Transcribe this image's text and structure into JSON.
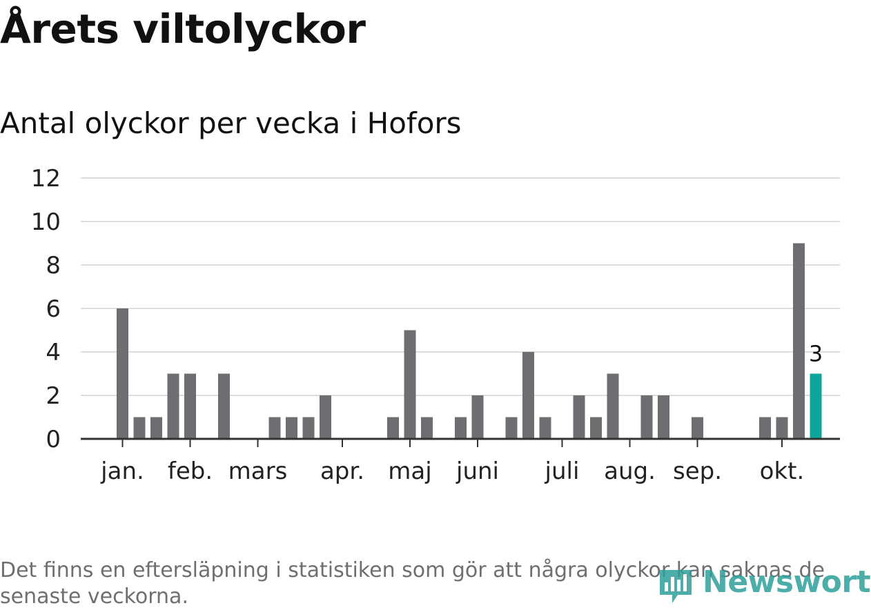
{
  "header": {
    "title": "Årets viltolyckor",
    "subtitle": "Antal olyckor per vecka i Hofors"
  },
  "footnote": "Det finns en eftersläpning i statistiken som gör att några olyckor kan saknas de senaste veckorna.",
  "logo": {
    "text": "Newsworthy",
    "icon": "newsworthy-chart-icon",
    "color": "#2e9f9a"
  },
  "chart_data": {
    "type": "bar",
    "x_unit": "week",
    "weeks": [
      1,
      2,
      3,
      4,
      5,
      6,
      7,
      8,
      9,
      10,
      11,
      12,
      13,
      14,
      15,
      16,
      17,
      18,
      19,
      20,
      21,
      22,
      23,
      24,
      25,
      26,
      27,
      28,
      29,
      30,
      31,
      32,
      33,
      34,
      35,
      36,
      37,
      38,
      39,
      40,
      41,
      42
    ],
    "values": [
      6,
      1,
      1,
      3,
      3,
      0,
      3,
      0,
      0,
      1,
      1,
      1,
      2,
      0,
      0,
      0,
      1,
      5,
      1,
      0,
      1,
      2,
      0,
      1,
      4,
      1,
      0,
      2,
      1,
      3,
      0,
      2,
      2,
      0,
      1,
      0,
      0,
      0,
      1,
      1,
      9,
      3
    ],
    "highlight": {
      "week": 42,
      "label": "3",
      "color": "#0ea59b"
    },
    "bar_color": "#6e6d72",
    "y_ticks": [
      "0",
      "2",
      "4",
      "6",
      "8",
      "10",
      "12"
    ],
    "ylim": [
      0,
      12
    ],
    "x_ticks": [
      {
        "label": "jan.",
        "week": 1
      },
      {
        "label": "feb.",
        "week": 5
      },
      {
        "label": "mars",
        "week": 9
      },
      {
        "label": "apr.",
        "week": 14
      },
      {
        "label": "maj",
        "week": 18
      },
      {
        "label": "juni",
        "week": 22
      },
      {
        "label": "juli",
        "week": 27
      },
      {
        "label": "aug.",
        "week": 31
      },
      {
        "label": "sep.",
        "week": 35
      },
      {
        "label": "okt.",
        "week": 40
      }
    ],
    "grid": true,
    "legend": "none"
  }
}
